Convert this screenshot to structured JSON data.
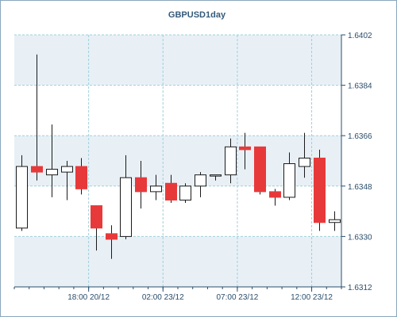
{
  "chart_data": {
    "type": "candlestick",
    "title": "GBPUSD1day",
    "xlabel": "",
    "ylabel": "",
    "ylim": [
      1.6312,
      1.6402
    ],
    "y_ticks": [
      "1.6402",
      "1.6384",
      "1.6366",
      "1.6348",
      "1.6330",
      "1.6312"
    ],
    "x_ticks": [
      "18:00 20/12",
      "02:00 23/12",
      "07:00 23/12",
      "12:00 23/12"
    ],
    "x_tick_candle_positions": [
      4.5,
      9.5,
      14.5,
      19.5
    ],
    "grid": true,
    "colors": {
      "up_fill": "#ffffff",
      "down_fill": "#e8393a",
      "candle_stroke": "#1a1a1a",
      "grid": "#9fcfda",
      "band": "#e8f0f6",
      "axis": "#2a4d6b",
      "title": "#345a7a"
    },
    "candles": [
      {
        "open": 1.6333,
        "high": 1.6359,
        "low": 1.6332,
        "close": 1.6355
      },
      {
        "open": 1.6355,
        "high": 1.6395,
        "low": 1.635,
        "close": 1.6353
      },
      {
        "open": 1.6352,
        "high": 1.637,
        "low": 1.6344,
        "close": 1.6354
      },
      {
        "open": 1.6353,
        "high": 1.6357,
        "low": 1.6343,
        "close": 1.6355
      },
      {
        "open": 1.6355,
        "high": 1.6358,
        "low": 1.6345,
        "close": 1.6347
      },
      {
        "open": 1.6341,
        "high": 1.6341,
        "low": 1.6325,
        "close": 1.6333
      },
      {
        "open": 1.6331,
        "high": 1.6334,
        "low": 1.6322,
        "close": 1.6329
      },
      {
        "open": 1.633,
        "high": 1.6359,
        "low": 1.6329,
        "close": 1.6351
      },
      {
        "open": 1.6351,
        "high": 1.6357,
        "low": 1.634,
        "close": 1.6346
      },
      {
        "open": 1.6346,
        "high": 1.6352,
        "low": 1.6343,
        "close": 1.6348
      },
      {
        "open": 1.6349,
        "high": 1.6352,
        "low": 1.6342,
        "close": 1.6343
      },
      {
        "open": 1.6343,
        "high": 1.6349,
        "low": 1.6342,
        "close": 1.6348
      },
      {
        "open": 1.6348,
        "high": 1.6353,
        "low": 1.6344,
        "close": 1.6352
      },
      {
        "open": 1.6352,
        "high": 1.6352,
        "low": 1.635,
        "close": 1.6352
      },
      {
        "open": 1.6352,
        "high": 1.6365,
        "low": 1.6349,
        "close": 1.6362
      },
      {
        "open": 1.6362,
        "high": 1.6367,
        "low": 1.6354,
        "close": 1.6361
      },
      {
        "open": 1.6362,
        "high": 1.6362,
        "low": 1.6345,
        "close": 1.6346
      },
      {
        "open": 1.6346,
        "high": 1.6347,
        "low": 1.6341,
        "close": 1.6344
      },
      {
        "open": 1.6344,
        "high": 1.636,
        "low": 1.6343,
        "close": 1.6356
      },
      {
        "open": 1.6355,
        "high": 1.6367,
        "low": 1.6351,
        "close": 1.6358
      },
      {
        "open": 1.6358,
        "high": 1.6361,
        "low": 1.6332,
        "close": 1.6335
      },
      {
        "open": 1.6335,
        "high": 1.6339,
        "low": 1.6332,
        "close": 1.6336
      }
    ]
  }
}
